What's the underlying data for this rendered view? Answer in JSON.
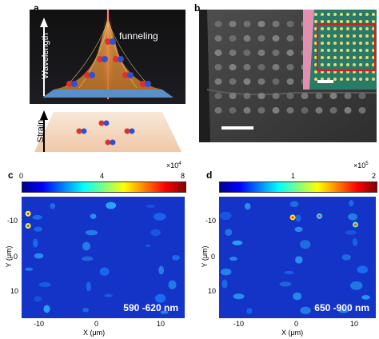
{
  "figure": {
    "panel_labels": {
      "a": "a",
      "b": "b",
      "c": "c",
      "d": "d"
    },
    "panel_a": {
      "funneling_label": "funneling",
      "wavelength_label": "Wavelength",
      "strain_label": "Strain"
    },
    "panel_c": {
      "colorbar_ticks": [
        "0",
        "4",
        "8"
      ],
      "colorbar_multiplier": "×10",
      "colorbar_exponent": "4",
      "y_axis_label": "Y (μm)",
      "x_axis_label": "X (μm)",
      "y_ticks": [
        "-10",
        "0",
        "10"
      ],
      "x_ticks": [
        "-10",
        "0",
        "10"
      ],
      "wavelength_range": "590 -620 nm"
    },
    "panel_d": {
      "colorbar_ticks": [
        "1",
        "2"
      ],
      "colorbar_multiplier": "×10",
      "colorbar_exponent": "5",
      "y_axis_label": "Y (μm)",
      "x_axis_label": "X (μm)",
      "y_ticks": [
        "-10",
        "0",
        "10"
      ],
      "x_ticks": [
        "-10",
        "0",
        "10"
      ],
      "wavelength_range": "650 -900 nm"
    },
    "colors": {
      "map_background": "#1434c8",
      "inset_background": "#2a7a68",
      "highlight_box": "#e01818"
    }
  }
}
